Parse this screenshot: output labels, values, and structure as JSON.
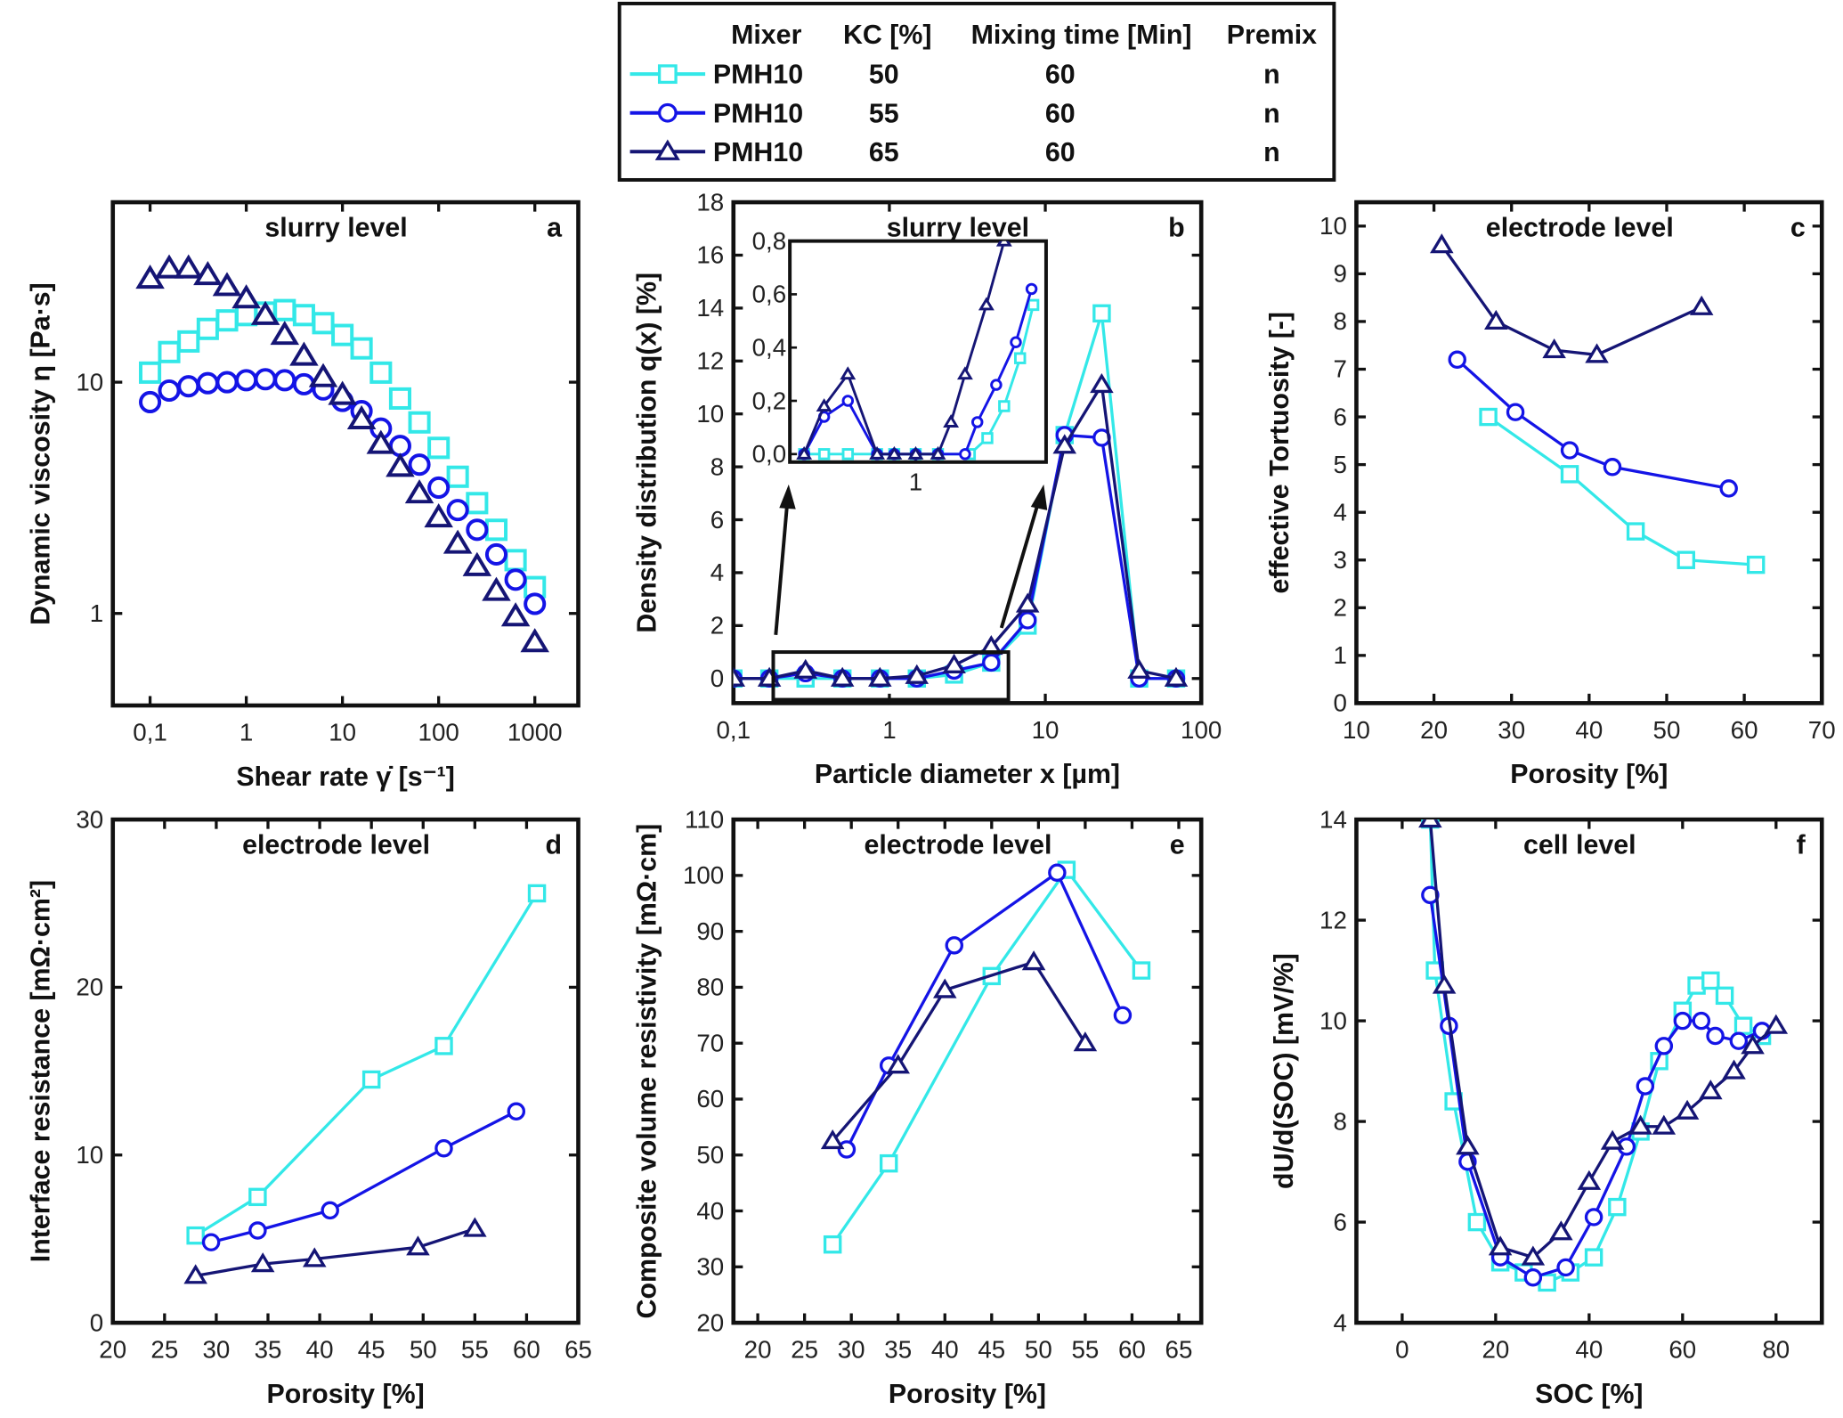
{
  "colors": {
    "PMH10_KC50": "#33e8e8",
    "PMH10_KC55": "#1414e6",
    "PMH10_KC65": "#151575"
  },
  "legend": {
    "headers": [
      "Mixer",
      "KC [%]",
      "Mixing time [Min]",
      "Premix"
    ],
    "rows": [
      {
        "marker": "square",
        "mixer": "PMH10",
        "kc": "50",
        "time": "60",
        "premix": "n"
      },
      {
        "marker": "circle",
        "mixer": "PMH10",
        "kc": "55",
        "time": "60",
        "premix": "n"
      },
      {
        "marker": "triangle",
        "mixer": "PMH10",
        "kc": "65",
        "time": "60",
        "premix": "n"
      }
    ]
  },
  "chart_data": [
    {
      "type": "scatter",
      "panel": "a",
      "title": "slurry level",
      "xlabel": "Shear rate γ̇ [s⁻¹]",
      "ylabel": "Dynamic viscosity η [Pa·s]",
      "xscale": "log",
      "yscale": "log",
      "xlim": [
        0.041,
        2830
      ],
      "ylim": [
        0.4,
        60
      ],
      "xticks": [
        0.1,
        1,
        10,
        100,
        1000
      ],
      "xticklabels": [
        "0,1",
        "1",
        "10",
        "100",
        "1000"
      ],
      "yticks": [
        1,
        10
      ],
      "yticklabels": [
        "1",
        "10"
      ],
      "lines": false,
      "series": [
        {
          "marker": "square",
          "x": [
            0.1,
            0.158,
            0.251,
            0.398,
            0.631,
            1,
            1.58,
            2.51,
            3.98,
            6.31,
            10,
            15.8,
            25.1,
            39.8,
            63.1,
            100,
            158,
            251,
            398,
            631,
            1000
          ],
          "y": [
            11,
            13.5,
            15,
            17,
            18.5,
            19.5,
            20,
            20.5,
            19.5,
            18,
            16,
            14,
            11,
            8.5,
            6.7,
            5.2,
            3.9,
            3.0,
            2.3,
            1.7,
            1.3
          ]
        },
        {
          "marker": "circle",
          "x": [
            0.1,
            0.158,
            0.251,
            0.398,
            0.631,
            1,
            1.58,
            2.51,
            3.98,
            6.31,
            10,
            15.8,
            25.1,
            39.8,
            63.1,
            100,
            158,
            251,
            398,
            631,
            1000
          ],
          "y": [
            8.2,
            9.2,
            9.6,
            9.9,
            10,
            10.2,
            10.3,
            10.2,
            9.8,
            9.3,
            8.3,
            7.5,
            6.3,
            5.3,
            4.4,
            3.5,
            2.8,
            2.3,
            1.8,
            1.4,
            1.1
          ]
        },
        {
          "marker": "triangle",
          "x": [
            0.1,
            0.158,
            0.251,
            0.398,
            0.631,
            1,
            1.58,
            2.51,
            3.98,
            6.31,
            10,
            15.8,
            25.1,
            39.8,
            63.1,
            100,
            158,
            251,
            398,
            631,
            1000
          ],
          "y": [
            28,
            31,
            31,
            29,
            26,
            23,
            19.5,
            16,
            13,
            10.5,
            8.8,
            6.9,
            5.4,
            4.3,
            3.3,
            2.6,
            2.0,
            1.6,
            1.25,
            0.97,
            0.75
          ]
        }
      ]
    },
    {
      "type": "line",
      "panel": "b",
      "title": "slurry level",
      "xlabel": "Particle diameter x [µm]",
      "ylabel": "Density distribution q(x) [%]",
      "xscale": "log",
      "yscale": "linear",
      "xlim": [
        0.1,
        100
      ],
      "ylim": [
        -0.93,
        18
      ],
      "xticks": [
        0.1,
        1,
        10,
        100
      ],
      "xticklabels": [
        "0,1",
        "1",
        "10",
        "100"
      ],
      "yticks": [
        0,
        2,
        4,
        6,
        8,
        10,
        12,
        14,
        16,
        18
      ],
      "yticklabels": [
        "0",
        "2",
        "4",
        "6",
        "8",
        "10",
        "12",
        "14",
        "16",
        "18"
      ],
      "lines": true,
      "series": [
        {
          "marker": "square",
          "x": [
            0.1,
            0.17,
            0.29,
            0.5,
            0.87,
            1.5,
            2.6,
            4.5,
            7.7,
            13.3,
            23,
            40,
            69
          ],
          "y": [
            0,
            0,
            0,
            0,
            0,
            0,
            0.15,
            0.6,
            2.0,
            9.2,
            13.8,
            0,
            0
          ]
        },
        {
          "marker": "circle",
          "x": [
            0.1,
            0.17,
            0.29,
            0.5,
            0.87,
            1.5,
            2.6,
            4.5,
            7.7,
            13.3,
            23,
            40,
            69
          ],
          "y": [
            0,
            0,
            0.2,
            0,
            0,
            0,
            0.3,
            0.6,
            2.2,
            9.2,
            9.1,
            0,
            0
          ]
        },
        {
          "marker": "triangle",
          "x": [
            0.1,
            0.17,
            0.29,
            0.5,
            0.87,
            1.5,
            2.6,
            4.5,
            7.7,
            13.3,
            23,
            40,
            69
          ],
          "y": [
            0,
            0,
            0.3,
            0,
            0,
            0.1,
            0.5,
            1.2,
            2.8,
            8.8,
            11.1,
            0.3,
            0
          ]
        }
      ],
      "inset": {
        "xscale": "log",
        "xlim": [
          0.2,
          5.3
        ],
        "ylim": [
          -0.03,
          0.8
        ],
        "xticks": [
          1
        ],
        "xticklabels": [
          "1"
        ],
        "yticks": [
          0,
          0.2,
          0.4,
          0.6,
          0.8
        ],
        "yticklabels": [
          "0,0",
          "0,2",
          "0,4",
          "0,6",
          "0,8"
        ],
        "series": [
          {
            "marker": "square",
            "x": [
              0.24,
              0.31,
              0.42,
              0.61,
              0.76,
              1.0,
              1.33,
              2.0,
              2.5,
              3.1,
              3.8,
              4.5
            ],
            "y": [
              0,
              0,
              0,
              0,
              0,
              0,
              0,
              0,
              0.06,
              0.18,
              0.36,
              0.56
            ]
          },
          {
            "marker": "circle",
            "x": [
              0.24,
              0.31,
              0.42,
              0.61,
              0.76,
              1.0,
              1.33,
              1.88,
              2.2,
              2.8,
              3.6,
              4.4
            ],
            "y": [
              0,
              0.14,
              0.2,
              0,
              0,
              0,
              0,
              0,
              0.12,
              0.26,
              0.42,
              0.62
            ]
          },
          {
            "marker": "triangle",
            "x": [
              0.24,
              0.31,
              0.42,
              0.61,
              0.76,
              1.0,
              1.33,
              1.57,
              1.88,
              2.47,
              3.1
            ],
            "y": [
              0,
              0.18,
              0.3,
              0,
              0,
              0,
              0,
              0.12,
              0.3,
              0.56,
              0.8
            ]
          }
        ]
      }
    },
    {
      "type": "line",
      "panel": "c",
      "title": "electrode level",
      "xlabel": "Porosity [%]",
      "ylabel": "effective Tortuosity [-]",
      "xscale": "linear",
      "yscale": "linear",
      "xlim": [
        10,
        70
      ],
      "ylim": [
        0,
        10.5
      ],
      "xticks": [
        10,
        20,
        30,
        40,
        50,
        60,
        70
      ],
      "xticklabels": [
        "10",
        "20",
        "30",
        "40",
        "50",
        "60",
        "70"
      ],
      "yticks": [
        0,
        1,
        2,
        3,
        4,
        5,
        6,
        7,
        8,
        9,
        10
      ],
      "yticklabels": [
        "0",
        "1",
        "2",
        "3",
        "4",
        "5",
        "6",
        "7",
        "8",
        "9",
        "10"
      ],
      "lines": true,
      "series": [
        {
          "marker": "square",
          "x": [
            27,
            37.5,
            46,
            52.5,
            61.5
          ],
          "y": [
            6.0,
            4.8,
            3.6,
            3.0,
            2.9
          ]
        },
        {
          "marker": "circle",
          "x": [
            23,
            30.5,
            37.5,
            43,
            58
          ],
          "y": [
            7.2,
            6.1,
            5.3,
            4.95,
            4.5
          ]
        },
        {
          "marker": "triangle",
          "x": [
            21,
            28,
            35.5,
            41,
            54.5
          ],
          "y": [
            9.6,
            8.0,
            7.4,
            7.3,
            8.3
          ]
        }
      ]
    },
    {
      "type": "line",
      "panel": "d",
      "title": "electrode level",
      "xlabel": "Porosity [%]",
      "ylabel": "Interface resistance [mΩ·cm²]",
      "xscale": "linear",
      "yscale": "linear",
      "xlim": [
        20,
        65
      ],
      "ylim": [
        0,
        30
      ],
      "xticks": [
        20,
        25,
        30,
        35,
        40,
        45,
        50,
        55,
        60,
        65
      ],
      "xticklabels": [
        "20",
        "25",
        "30",
        "35",
        "40",
        "45",
        "50",
        "55",
        "60",
        "65"
      ],
      "yticks": [
        0,
        10,
        20,
        30
      ],
      "yticklabels": [
        "0",
        "10",
        "20",
        "30"
      ],
      "lines": true,
      "series": [
        {
          "marker": "square",
          "x": [
            28,
            34,
            45,
            52,
            61
          ],
          "y": [
            5.2,
            7.5,
            14.5,
            16.5,
            25.6
          ]
        },
        {
          "marker": "circle",
          "x": [
            29.5,
            34,
            41,
            52,
            59
          ],
          "y": [
            4.8,
            5.5,
            6.7,
            10.4,
            12.6
          ]
        },
        {
          "marker": "triangle",
          "x": [
            28,
            34.5,
            39.5,
            49.5,
            55
          ],
          "y": [
            2.8,
            3.5,
            3.8,
            4.5,
            5.6
          ]
        }
      ]
    },
    {
      "type": "line",
      "panel": "e",
      "title": "electrode level",
      "xlabel": "Porosity [%]",
      "ylabel": "Composite volume resistivity [mΩ·cm]",
      "xscale": "linear",
      "yscale": "linear",
      "xlim": [
        17.4,
        67.4
      ],
      "ylim": [
        20,
        110
      ],
      "xticks": [
        20,
        25,
        30,
        35,
        40,
        45,
        50,
        55,
        60,
        65
      ],
      "xticklabels": [
        "20",
        "25",
        "30",
        "35",
        "40",
        "45",
        "50",
        "55",
        "60",
        "65"
      ],
      "yticks": [
        20,
        30,
        40,
        50,
        60,
        70,
        80,
        90,
        100,
        110
      ],
      "yticklabels": [
        "20",
        "30",
        "40",
        "50",
        "60",
        "70",
        "80",
        "90",
        "100",
        "110"
      ],
      "lines": true,
      "series": [
        {
          "marker": "square",
          "x": [
            28,
            34,
            45,
            53,
            61
          ],
          "y": [
            34,
            48.5,
            82,
            101,
            83
          ]
        },
        {
          "marker": "circle",
          "x": [
            29.5,
            34,
            41,
            52,
            59
          ],
          "y": [
            51,
            66,
            87.5,
            100.5,
            75
          ]
        },
        {
          "marker": "triangle",
          "x": [
            28,
            35,
            40,
            49.5,
            55
          ],
          "y": [
            52.5,
            66,
            79.5,
            84.5,
            70
          ]
        }
      ]
    },
    {
      "type": "line",
      "panel": "f",
      "title": "cell level",
      "xlabel": "SOC [%]",
      "ylabel": "dU/d(SOC) [mV/%]",
      "xscale": "linear",
      "yscale": "linear",
      "xlim": [
        -9.8,
        89.8
      ],
      "ylim": [
        4,
        14
      ],
      "xticks": [
        0,
        20,
        40,
        60,
        80
      ],
      "xticklabels": [
        "0",
        "20",
        "40",
        "60",
        "80"
      ],
      "yticks": [
        4,
        6,
        8,
        10,
        12,
        14
      ],
      "yticklabels": [
        "4",
        "6",
        "8",
        "10",
        "12",
        "14"
      ],
      "lines": true,
      "series": [
        {
          "marker": "square",
          "x": [
            6,
            7,
            11,
            16,
            21,
            26,
            31,
            36,
            41,
            46,
            51,
            55,
            60,
            63,
            66,
            69,
            73,
            77
          ],
          "y": [
            14,
            11,
            8.4,
            6,
            5.2,
            5,
            4.8,
            5,
            5.3,
            6.3,
            7.8,
            9.2,
            10.2,
            10.7,
            10.8,
            10.5,
            9.9,
            9.7
          ]
        },
        {
          "marker": "circle",
          "x": [
            6,
            10,
            14,
            21,
            28,
            35,
            41,
            48,
            52,
            56,
            60,
            64,
            67,
            72,
            77
          ],
          "y": [
            12.5,
            9.9,
            7.2,
            5.3,
            4.9,
            5.1,
            6.1,
            7.5,
            8.7,
            9.5,
            10,
            10,
            9.7,
            9.6,
            9.8
          ]
        },
        {
          "marker": "triangle",
          "x": [
            6,
            9,
            14,
            21,
            28,
            34,
            40,
            45,
            51,
            56,
            61,
            66,
            71,
            75,
            80
          ],
          "y": [
            14,
            10.7,
            7.5,
            5.5,
            5.3,
            5.8,
            6.8,
            7.6,
            7.9,
            7.9,
            8.2,
            8.6,
            9.0,
            9.5,
            9.9
          ]
        }
      ]
    }
  ]
}
